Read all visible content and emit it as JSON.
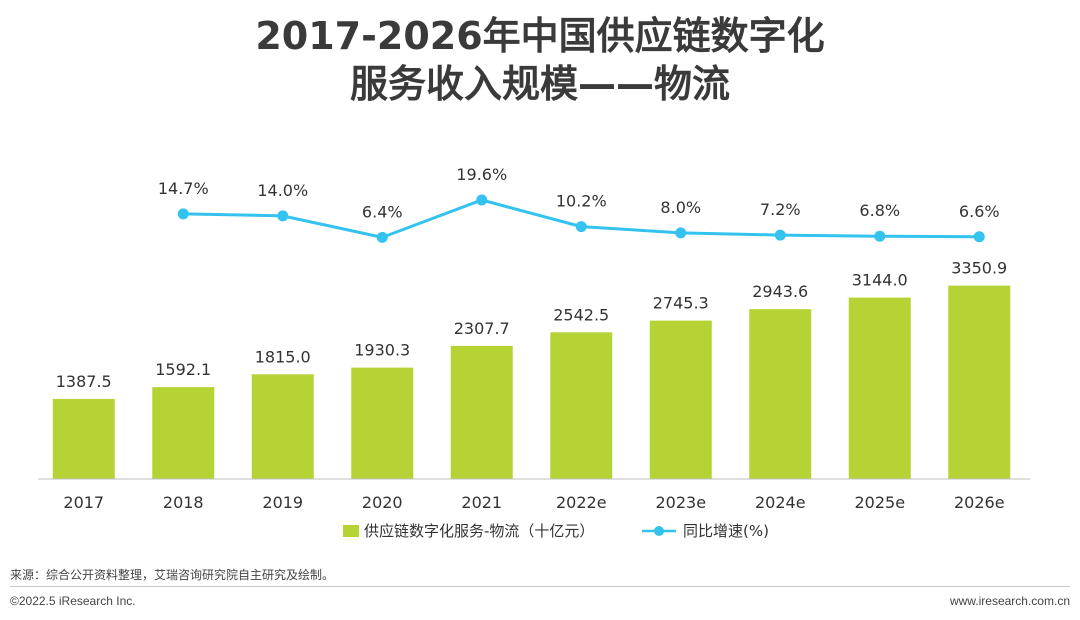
{
  "chart_data": {
    "type": "bar",
    "title_line1": "2017-2026年中国供应链数字化",
    "title_line2": "服务收入规模——物流",
    "categories": [
      "2017",
      "2018",
      "2019",
      "2020",
      "2021",
      "2022e",
      "2023e",
      "2024e",
      "2025e",
      "2026e"
    ],
    "series": [
      {
        "name": "供应链数字化服务-物流（十亿元）",
        "kind": "bar",
        "values": [
          1387.5,
          1592.1,
          1815.0,
          1930.3,
          2307.7,
          2542.5,
          2745.3,
          2943.6,
          3144.0,
          3350.9
        ],
        "labels": [
          "1387.5",
          "1592.1",
          "1815.0",
          "1930.3",
          "2307.7",
          "2542.5",
          "2745.3",
          "2943.6",
          "3144.0",
          "3350.9"
        ],
        "color": "#b5d334"
      },
      {
        "name": "同比增速(%)",
        "kind": "line",
        "values": [
          null,
          14.7,
          14.0,
          6.4,
          19.6,
          10.2,
          8.0,
          7.2,
          6.8,
          6.6
        ],
        "labels": [
          "",
          "14.7%",
          "14.0%",
          "6.4%",
          "19.6%",
          "10.2%",
          "8.0%",
          "7.2%",
          "6.8%",
          "6.6%"
        ],
        "color": "#33c3ee"
      }
    ],
    "legend_position": "bottom-center"
  },
  "footer": {
    "source": "来源：综合公开资料整理，艾瑞咨询研究院自主研究及绘制。",
    "copyright": "©2022.5 iResearch Inc.",
    "website": "www.iresearch.com.cn"
  }
}
